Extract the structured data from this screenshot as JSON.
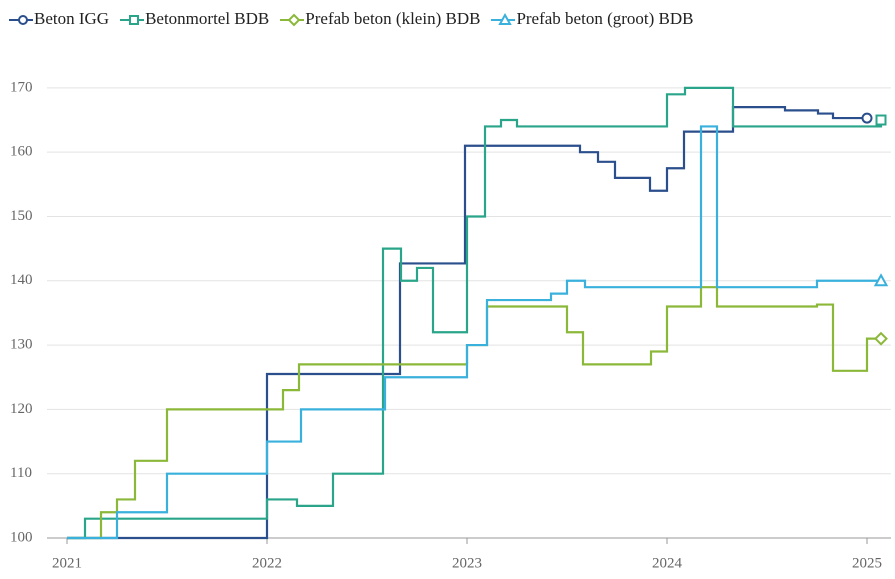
{
  "chart_data": {
    "type": "line",
    "step": true,
    "grid": true,
    "xlim": [
      2020.9,
      2025.12
    ],
    "xticks": [
      2021,
      2022,
      2023,
      2024,
      2025
    ],
    "ylim": [
      100,
      172
    ],
    "yticks": [
      100,
      110,
      120,
      130,
      140,
      150,
      160,
      170
    ],
    "series": [
      {
        "name": "Beton IGG",
        "color": "#2b4f8c",
        "marker": "circle",
        "x": [
          2021,
          2022,
          2022.665,
          2022.99,
          2023.565,
          2023.655,
          2023.74,
          2023.915,
          2024.0,
          2024.085,
          2024.33,
          2024.59,
          2024.755,
          2024.83,
          2025.0
        ],
        "values": [
          100,
          125.5,
          142.7,
          161,
          160,
          158.5,
          156,
          154,
          157.5,
          163.2,
          167,
          166.5,
          166,
          165.3,
          165.3
        ]
      },
      {
        "name": "Betonmortel BDB",
        "color": "#2aa58a",
        "marker": "square",
        "x": [
          2021,
          2021.09,
          2022.0,
          2022.15,
          2022.33,
          2022.58,
          2022.67,
          2022.75,
          2022.83,
          2023.0,
          2023.09,
          2023.17,
          2023.25,
          2024.0,
          2024.09,
          2024.33,
          2025.07
        ],
        "values": [
          100,
          103,
          106,
          105,
          110,
          145,
          140,
          142,
          132,
          150,
          164,
          165,
          164,
          169,
          170,
          164,
          165
        ]
      },
      {
        "name": "Prefab beton (klein) BDB",
        "color": "#8cb83a",
        "marker": "diamond",
        "x": [
          2021,
          2021.17,
          2021.25,
          2021.34,
          2021.5,
          2022.08,
          2022.16,
          2023.0,
          2023.1,
          2023.5,
          2023.58,
          2023.92,
          2024.0,
          2024.17,
          2024.25,
          2024.75,
          2024.83,
          2025.0,
          2025.07
        ],
        "values": [
          100,
          104,
          106,
          112,
          120,
          123,
          127,
          130,
          136,
          132,
          127,
          129,
          136,
          139,
          136,
          136.3,
          126,
          131,
          131
        ]
      },
      {
        "name": "Prefab beton (groot) BDB",
        "color": "#3ab0dc",
        "marker": "triangle",
        "x": [
          2021,
          2021.25,
          2021.5,
          2022.0,
          2022.17,
          2022.59,
          2023.0,
          2023.1,
          2023.42,
          2023.5,
          2023.59,
          2024.17,
          2024.25,
          2024.75,
          2025.07
        ],
        "values": [
          100,
          104,
          110,
          115,
          120,
          125,
          130,
          137,
          138,
          140,
          139,
          164,
          139,
          140,
          140
        ]
      }
    ]
  }
}
